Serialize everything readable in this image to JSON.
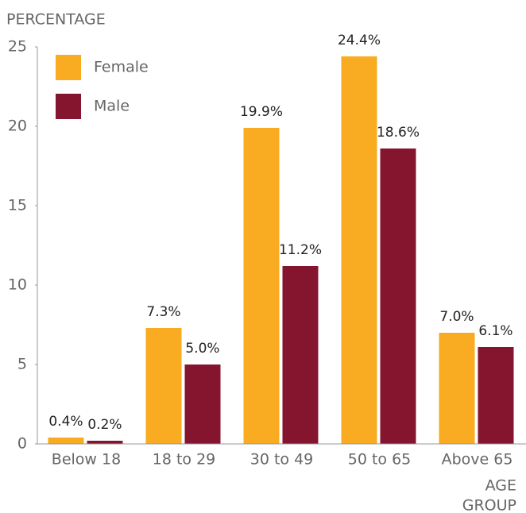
{
  "chart_data": {
    "type": "bar",
    "ylabel": "PERCENTAGE",
    "xlabel": [
      "AGE",
      "GROUP"
    ],
    "categories": [
      "Below 18",
      "18 to 29",
      "30 to 49",
      "50 to 65",
      "Above 65"
    ],
    "series": [
      {
        "name": "Female",
        "color": "#f9ab21",
        "values": [
          0.4,
          7.3,
          19.9,
          24.4,
          7.0
        ],
        "value_labels": [
          "0.4%",
          "7.3%",
          "19.9%",
          "24.4%",
          "7.0%"
        ]
      },
      {
        "name": "Male",
        "color": "#85152f",
        "values": [
          0.2,
          5.0,
          11.2,
          18.6,
          6.1
        ],
        "value_labels": [
          "0.2%",
          "5.0%",
          "11.2%",
          "18.6%",
          "6.1%"
        ]
      }
    ],
    "ylim": [
      0,
      25
    ],
    "yticks": [
      0,
      5,
      10,
      15,
      20,
      25
    ],
    "legend": "top-left"
  }
}
